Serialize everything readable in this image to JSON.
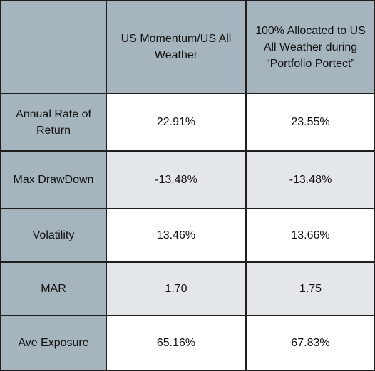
{
  "header": {
    "corner": "",
    "col1": "US Momentum/US All Weather",
    "col2": "100% Allocated to US All Weather during “Portfolio Portect”"
  },
  "rows": [
    {
      "label": "Annual Rate of Return",
      "v1": "22.91%",
      "v2": "23.55%"
    },
    {
      "label": "Max DrawDown",
      "v1": "-13.48%",
      "v2": "-13.48%"
    },
    {
      "label": "Volatility",
      "v1": "13.46%",
      "v2": "13.66%"
    },
    {
      "label": "MAR",
      "v1": "1.70",
      "v2": "1.75"
    },
    {
      "label": "Ave Exposure",
      "v1": "65.16%",
      "v2": "67.83%"
    }
  ],
  "colors": {
    "header_bg": "#a5b4bd",
    "alt_row_bg": "#e4e7e9",
    "border": "#1f1f1f"
  }
}
